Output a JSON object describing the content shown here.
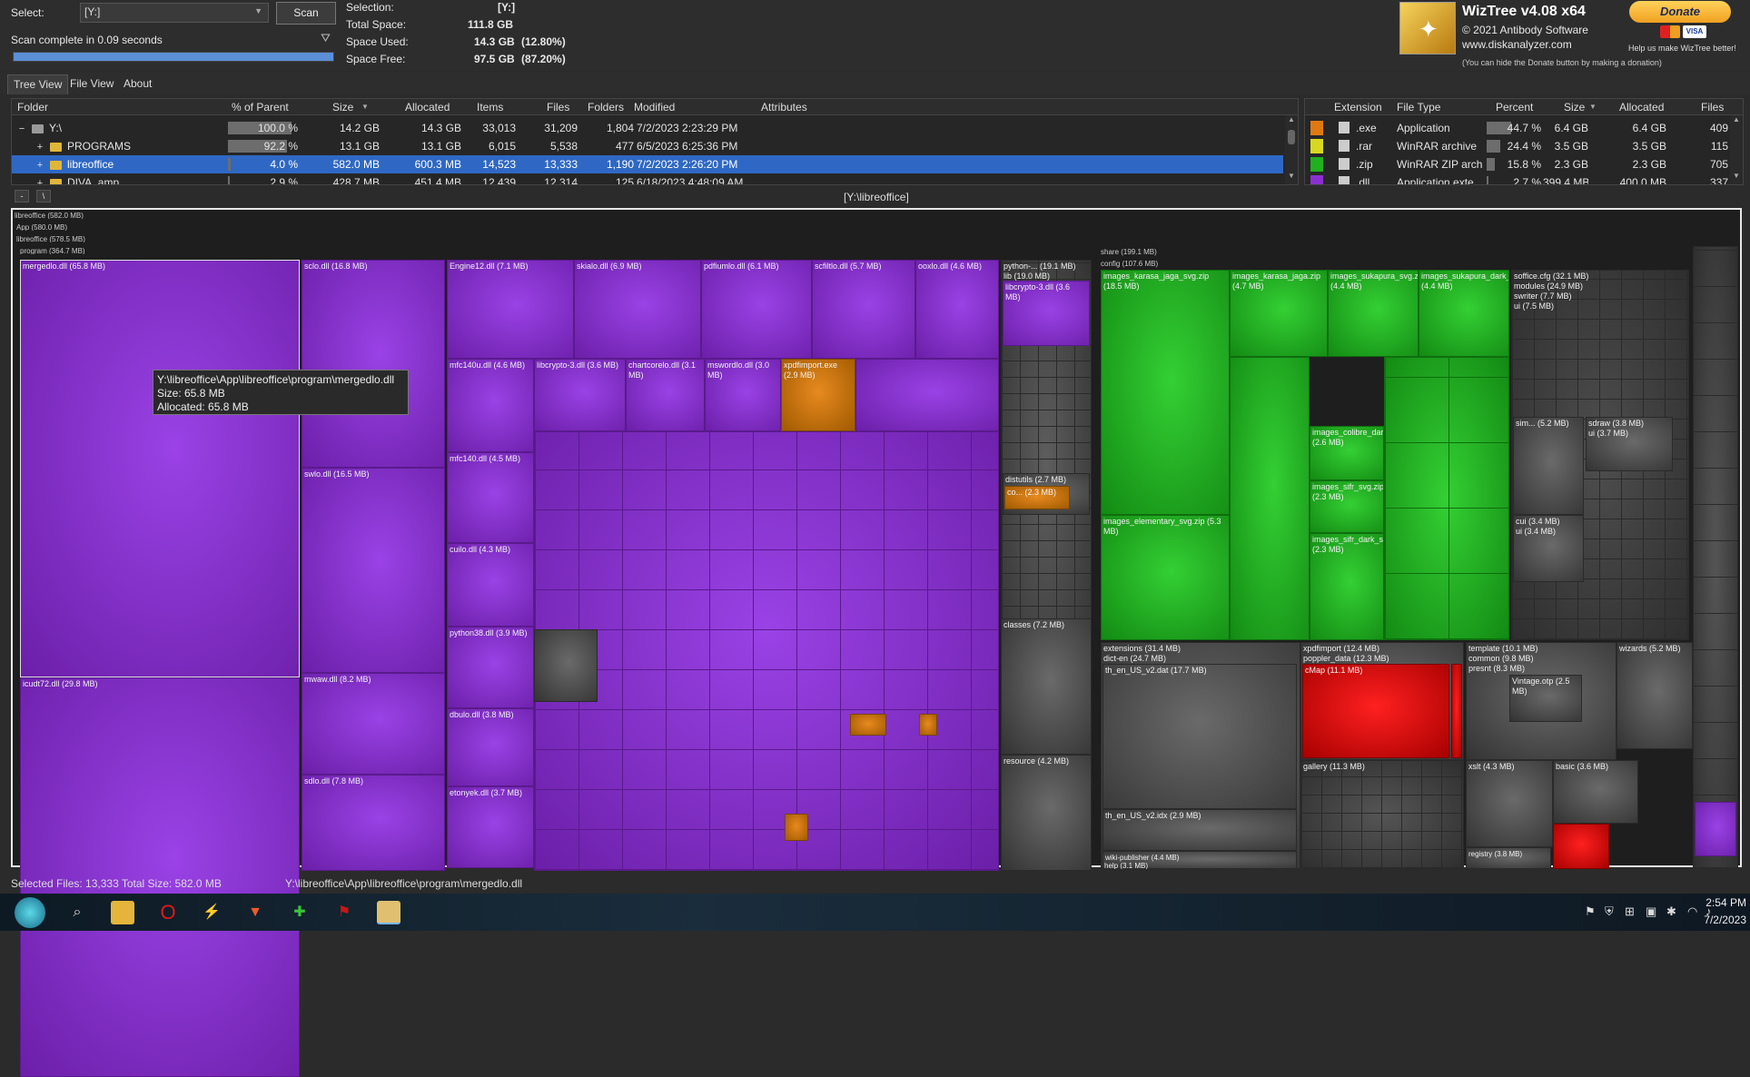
{
  "toolbar": {
    "select_label": "Select:",
    "drive_value": "[Y:]",
    "scan_button": "Scan",
    "scan_status": "Scan complete in 0.09 seconds",
    "scan_progress": 1.0
  },
  "summary": {
    "selection_label": "Selection:",
    "selection_value": "[Y:]",
    "total_label": "Total Space:",
    "total_value": "111.8 GB",
    "used_label": "Space Used:",
    "used_value": "14.3 GB",
    "used_pct": "(12.80%)",
    "free_label": "Space Free:",
    "free_value": "97.5 GB",
    "free_pct": "(87.20%)"
  },
  "branding": {
    "title": "WizTree v4.08 x64",
    "copyright": "© 2021 Antibody Software",
    "url": "www.diskanalyzer.com",
    "hide_note": "(You can hide the Donate button by making a donation)",
    "donate_button": "Donate",
    "donate_note": "Help us make WizTree better!",
    "card_visa": "VISA"
  },
  "tabs": [
    "Tree View",
    "File View",
    "About"
  ],
  "tree": {
    "headers": [
      "Folder",
      "% of Parent",
      "Size",
      "Allocated",
      "Items",
      "Files",
      "Folders",
      "Modified",
      "Attributes"
    ],
    "rows": [
      {
        "name": "Y:\\",
        "pct": "100.0 %",
        "pct_val": 1.0,
        "size": "14.2 GB",
        "alloc": "14.3 GB",
        "items": "33,013",
        "files": "31,209",
        "folders": "1,804",
        "modified": "7/2/2023 2:23:29 PM",
        "expander": "−"
      },
      {
        "name": "PROGRAMS",
        "pct": "92.2 %",
        "pct_val": 0.922,
        "size": "13.1 GB",
        "alloc": "13.1 GB",
        "items": "6,015",
        "files": "5,538",
        "folders": "477",
        "modified": "6/5/2023 6:25:36 PM",
        "expander": "+"
      },
      {
        "name": "libreoffice",
        "pct": "4.0 %",
        "pct_val": 0.04,
        "size": "582.0 MB",
        "alloc": "600.3 MB",
        "items": "14,523",
        "files": "13,333",
        "folders": "1,190",
        "modified": "7/2/2023 2:26:20 PM",
        "expander": "+"
      },
      {
        "name": "DIVA_amp",
        "pct": "2.9 %",
        "pct_val": 0.029,
        "size": "428.7 MB",
        "alloc": "451.4 MB",
        "items": "12,439",
        "files": "12,314",
        "folders": "125",
        "modified": "6/18/2023 4:48:09 AM",
        "expander": "+"
      }
    ]
  },
  "ext": {
    "headers": [
      "Extension",
      "File Type",
      "Percent",
      "Size",
      "Allocated",
      "Files"
    ],
    "rows": [
      {
        "color": "#e07a10",
        "ext": ".exe",
        "type": "Application",
        "pct": "44.7 %",
        "pct_val": 0.447,
        "size": "6.4 GB",
        "alloc": "6.4 GB",
        "files": "409"
      },
      {
        "color": "#d8d820",
        "ext": ".rar",
        "type": "WinRAR archive",
        "pct": "24.4 %",
        "pct_val": 0.244,
        "size": "3.5 GB",
        "alloc": "3.5 GB",
        "files": "115"
      },
      {
        "color": "#20b020",
        "ext": ".zip",
        "type": "WinRAR ZIP arch",
        "pct": "15.8 %",
        "pct_val": 0.158,
        "size": "2.3 GB",
        "alloc": "2.3 GB",
        "files": "705"
      },
      {
        "color": "#8a30d0",
        "ext": ".dll",
        "type": "Application exte",
        "pct": "2.7 %",
        "pct_val": 0.027,
        "size": "399.4 MB",
        "alloc": "400.0 MB",
        "files": "337"
      }
    ]
  },
  "treemap": {
    "path": "[Y:\\libreoffice]",
    "crumbs": [
      "libreoffice (582.0 MB)",
      "App (580.0 MB)",
      "libreoffice (578.5 MB)",
      "program (364.7 MB)"
    ],
    "labels": {
      "mergedlo": "mergedlo.dll (65.8 MB)",
      "icudt": "icudt72.dll (29.8 MB)",
      "sclo": "sclo.dll (16.8 MB)",
      "swlo": "swlo.dll (16.5 MB)",
      "mwaw": "mwaw.dll (8.2 MB)",
      "sdlo": "sdlo.dll (7.8 MB)",
      "engine": "Engine12.dll (7.1 MB)",
      "skia": "skialo.dll (6.9 MB)",
      "pdfium": "pdfiumlo.dll (6.1 MB)",
      "scfilt": "scfiltlo.dll (5.7 MB)",
      "ooxlo": "ooxlo.dll (4.6 MB)",
      "mfc140u": "mfc140u.dll (4.6 MB)",
      "libcrypto": "libcrypto-3.dll (3.6 MB)",
      "chartcore": "chartcorelo.dll (3.1 MB)",
      "msword": "mswordlo.dll (3.0 MB)",
      "xpdf": "xpdfimport.exe (2.9 MB)",
      "mfc140": "mfc140.dll (4.5 MB)",
      "cuilo": "cuilo.dll (4.3 MB)",
      "python38": "python38.dll (3.9 MB)",
      "dbulo": "dbulo.dll (3.8 MB)",
      "etonyek": "etonyek.dll (3.7 MB)",
      "python": "python-... (19.1 MB)",
      "lib": "lib (19.0 MB)",
      "libcrypto2": "libcrypto-3.dll (3.6 MB)",
      "distutils": "distutils (2.7 MB)",
      "co": "co... (2.3 MB)",
      "classes": "classes (7.2 MB)",
      "resource": "resource (4.2 MB)",
      "share": "share (199.1 MB)",
      "config": "config (107.6 MB)",
      "karasa": "images_karasa_jaga_svg.zip (18.5 MB)",
      "karasa2": "images_karasa_jaga.zip (4.7 MB)",
      "sukapura": "images_sukapura_svg.zi (4.4 MB)",
      "sukadark": "images_sukapura_dark_ (4.4 MB)",
      "colibre": "images_colibre_dar (2.6 MB)",
      "sifr": "images_sifr_svg.zip (2.3 MB)",
      "sifrdark": "images_sifr_dark_s (2.3 MB)",
      "elementary": "images_elementary_svg.zip (5.3 MB)",
      "soffice": "soffice.cfg (32.1 MB)",
      "modules": "modules (24.9 MB)",
      "swriter": "swriter (7.7 MB)",
      "ui75": "ui (7.5 MB)",
      "sim": "sim... (5.2 MB)",
      "sdraw": "sdraw (3.8 MB)",
      "ui37": "ui (3.7 MB)",
      "cui": "cui (3.4 MB)",
      "ui34": "ui (3.4 MB)",
      "extensions": "extensions (31.4 MB)",
      "dicten": "dict-en (24.7 MB)",
      "thdat": "th_en_US_v2.dat (17.7 MB)",
      "thidx": "th_en_US_v2.idx (2.9 MB)",
      "wiki": "wiki-publisher (4.4 MB)",
      "help": "help (3.1 MB)",
      "xpdfimport": "xpdfimport (12.4 MB)",
      "poppler": "poppler_data (12.3 MB)",
      "cmap": "cMap (11.1 MB)",
      "gallery": "gallery (11.3 MB)",
      "template": "template (10.1 MB)",
      "common": "common (9.8 MB)",
      "presnt": "presnt (8.3 MB)",
      "vintage": "Vintage.otp (2.5 MB)",
      "xslt": "xslt (4.3 MB)",
      "basic": "basic (3.6 MB)",
      "registry": "registry (3.8 MB)",
      "wizards": "wizards (5.2 MB)"
    },
    "tooltip": {
      "path": "Y:\\libreoffice\\App\\libreoffice\\program\\mergedlo.dll",
      "size": "Size: 65.8 MB",
      "alloc": "Allocated: 65.8 MB"
    }
  },
  "status": {
    "selected": "Selected Files: 13,333  Total Size: 582.0 MB",
    "path": "Y:\\libreoffice\\App\\libreoffice\\program\\mergedlo.dll"
  },
  "taskbar": {
    "time": "2:54 PM",
    "date": "7/2/2023"
  }
}
